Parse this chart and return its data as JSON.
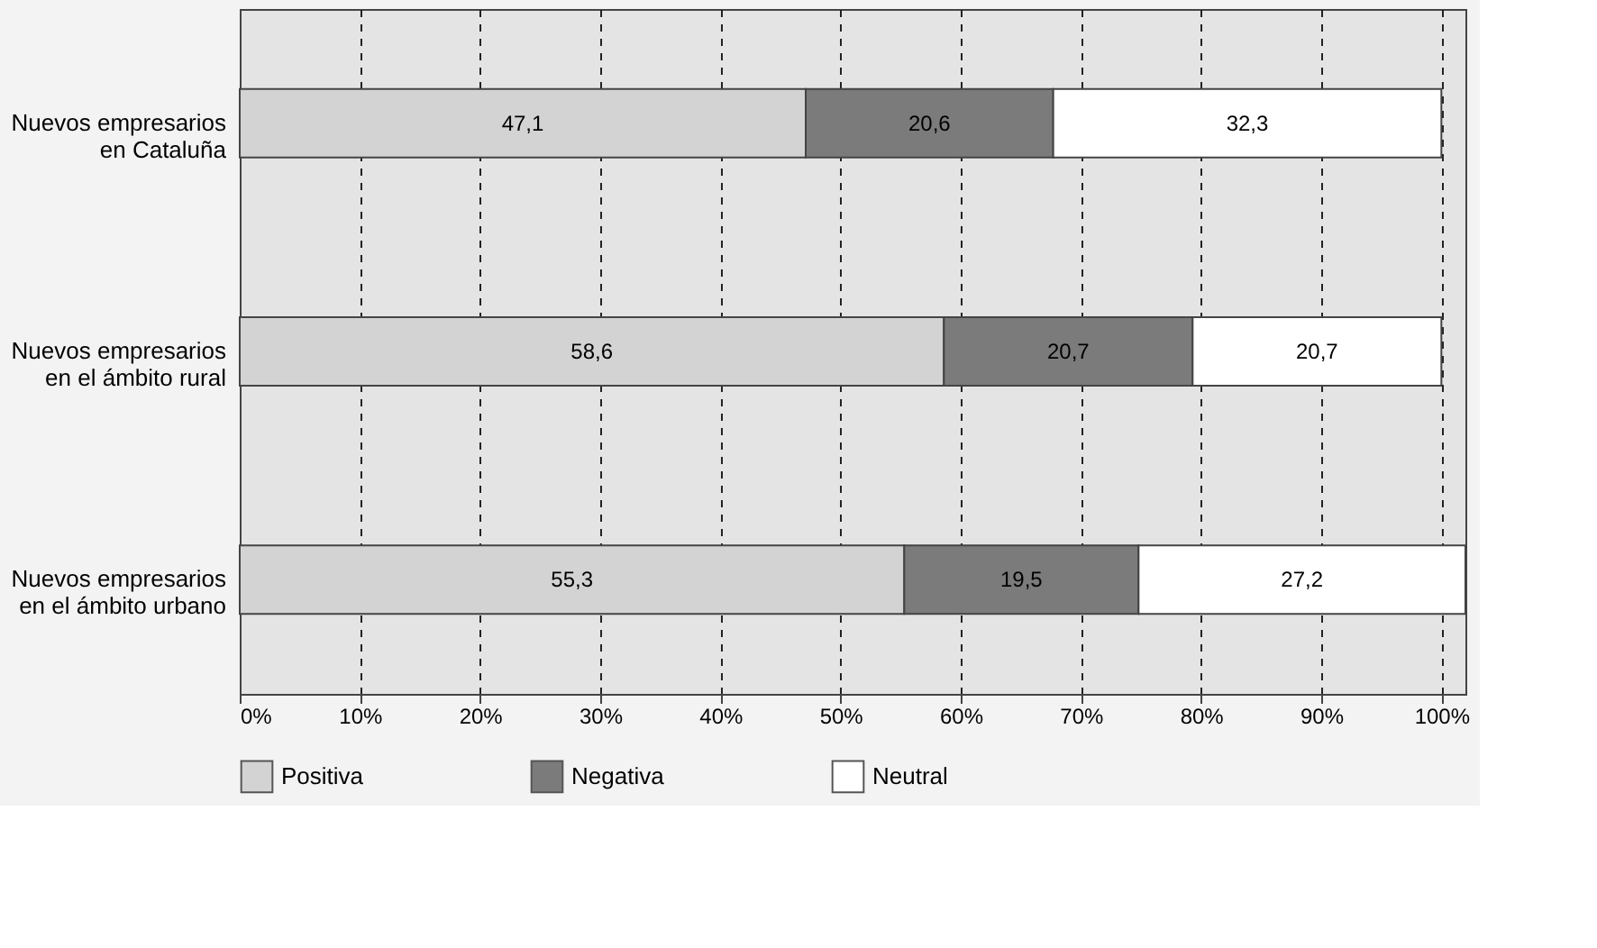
{
  "chart_data": {
    "type": "bar",
    "orientation": "horizontal",
    "stacked": true,
    "categories": [
      "Nuevos empresarios\nen Cataluña",
      "Nuevos empresarios\nen el ámbito rural",
      "Nuevos empresarios\nen el ámbito urbano"
    ],
    "series": [
      {
        "name": "Positiva",
        "color": "#d3d3d3",
        "values": [
          47.1,
          58.6,
          55.3
        ]
      },
      {
        "name": "Negativa",
        "color": "#7b7b7b",
        "values": [
          20.6,
          20.7,
          19.5
        ]
      },
      {
        "name": "Neutral",
        "color": "#ffffff",
        "values": [
          32.3,
          20.7,
          27.2
        ]
      }
    ],
    "value_labels": [
      [
        "47,1",
        "58,6",
        "55,3"
      ],
      [
        "20,6",
        "20,7",
        "19,5"
      ],
      [
        "32,3",
        "20,7",
        "27,2"
      ]
    ],
    "xlim": [
      0,
      102
    ],
    "xticks": [
      {
        "value": 0,
        "label": "0%"
      },
      {
        "value": 10,
        "label": "10%"
      },
      {
        "value": 20,
        "label": "20%"
      },
      {
        "value": 30,
        "label": "30%"
      },
      {
        "value": 40,
        "label": "40%"
      },
      {
        "value": 50,
        "label": "50%"
      },
      {
        "value": 60,
        "label": "60%"
      },
      {
        "value": 70,
        "label": "70%"
      },
      {
        "value": 80,
        "label": "80%"
      },
      {
        "value": 90,
        "label": "90%"
      },
      {
        "value": 100,
        "label": "100%"
      }
    ],
    "grid": "x",
    "legend": "bottom"
  }
}
